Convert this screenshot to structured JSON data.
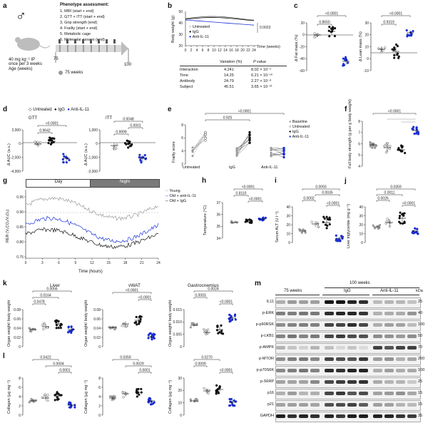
{
  "panel_labels": [
    "a",
    "b",
    "c",
    "d",
    "e",
    "f",
    "g",
    "h",
    "i",
    "j",
    "k",
    "l",
    "m"
  ],
  "a": {
    "header": "Phenotype assessment:",
    "items": [
      "1. MRI (start + end)",
      "2. GTT + ITT (start + end)",
      "3. Grip strength (end)",
      "4. Frailty (start + end)",
      "5. Metabolic cage",
      "6. Molecular assays (end)"
    ],
    "dose": "40 mg kg⁻¹ IP",
    "freq": "once per 3 weeks",
    "age_label": "Age (weeks)",
    "age_start": "75",
    "age_end": "100",
    "legend": "75 weeks",
    "sex_symbol": "♂"
  },
  "b": {
    "ylabel": "Body weight (g)",
    "xlabel": "Time (weeks)",
    "pvalue": "0.0023",
    "legend": [
      "Untreated",
      "IgG",
      "Anti-IL-11"
    ],
    "table_header": [
      "Variation (%)",
      "P value"
    ],
    "table_rows": [
      [
        "Interaction",
        "4.241",
        "8.02 × 10⁻⁵"
      ],
      [
        "Time",
        "14.25",
        "6.21 × 10⁻¹⁶"
      ],
      [
        "Antibody",
        "24.79",
        "2.27 × 10⁻⁸"
      ],
      [
        "Subject",
        "45.51",
        "3.65 × 10⁻²¹"
      ]
    ]
  },
  "c": {
    "ylabel1": "Δ Fat mass (%)",
    "ylabel2": "Δ Lean mass (%)",
    "p1": [
      "<0.0001",
      "0.8650"
    ],
    "p2": [
      "<0.0001",
      "0.9319"
    ]
  },
  "d": {
    "legend": [
      "Untreated",
      "IgG",
      "Anti-IL-11"
    ],
    "gtt_title": "GTT",
    "itt_title": "ITT",
    "ylabel": "Δ AUC (a.u.)",
    "gtt_p": [
      "<0.0001",
      "0.9642"
    ],
    "itt_p": [
      "0.0048",
      "0.0001",
      "0.9999"
    ]
  },
  "e": {
    "ylabel": "Frailty score",
    "groups": [
      "Untreated",
      "IgG",
      "Anti-IL-11"
    ],
    "legend": [
      "Baseline",
      "Untreated",
      "IgG",
      "Anti-IL-11"
    ],
    "p": [
      "<0.0001",
      "0.925"
    ]
  },
  "f": {
    "ylabel": "Full body strength (g per g body weight)",
    "p": [
      "<0.0001"
    ]
  },
  "g": {
    "day": "Day",
    "night": "Night",
    "ylabel": "RER (V₁CO₂/V₁O₂)",
    "xlabel": "Time (hours)",
    "legend": [
      "Young",
      "Old + anti-IL-11",
      "Old + IgG"
    ],
    "xticks": [
      "0",
      "3",
      "6",
      "9",
      "12",
      "15",
      "18",
      "21",
      "24"
    ],
    "yticks": [
      "0.95",
      "0.90",
      "0.85",
      "0.80",
      "0.75"
    ]
  },
  "h": {
    "ylabel": "Temperature (°C)",
    "p": [
      "<0.0001",
      "0.8110",
      "<0.0001"
    ],
    "yticks": [
      "37",
      "36",
      "35",
      "34"
    ]
  },
  "i": {
    "ylabel": "Serum ALT (U l⁻¹)",
    "p": [
      "0.0093",
      "0.0035",
      "0.0002",
      "<0.0001"
    ]
  },
  "j": {
    "ylabel": "Liver triglyceride (mg g⁻¹)",
    "p": [
      "0.0359",
      "0.0011",
      "0.0026",
      "<0.0001"
    ]
  },
  "k": {
    "titles": [
      "Liver",
      "vWAT",
      "Gastrocnemius"
    ],
    "ylabel": "Organ weight/ body weight",
    "p_liver": [
      "0.0056",
      "0.0164",
      "0.0478"
    ],
    "p_vwat": [
      "<0.0001",
      "<0.0001"
    ],
    "p_gastro": [
      "0.0024",
      "0.0003",
      "<0.0001"
    ]
  },
  "l": {
    "ylabel": "Collagen (µg mg⁻¹)",
    "p_liver": [
      "0.0422",
      "0.0004",
      "0.0001"
    ],
    "p_vwat": [
      "0.0359",
      "0.0029",
      "0.0001"
    ],
    "p_gastro": [
      "0.0270",
      "0.0009",
      "<0.0001"
    ]
  },
  "m": {
    "header_top": "100 weeks",
    "groups": [
      "75 weeks",
      "IgG",
      "Anti-IL-11"
    ],
    "kda_label": "kDa",
    "rows": [
      {
        "label": "IL11",
        "kda": "25"
      },
      {
        "label": "p-ERK",
        "kda": "40"
      },
      {
        "label": "p-p90RSK",
        "kda": "100"
      },
      {
        "label": "p-LKB1",
        "kda": "50"
      },
      {
        "label": "p-AMPK",
        "kda": "70"
      },
      {
        "label": "p-MTOR",
        "kda": "260"
      },
      {
        "label": "p-p70S6K",
        "kda": "100"
      },
      {
        "label": "p-S6RP",
        "kda": "25"
      },
      {
        "label": "p16",
        "kda": "15"
      },
      {
        "label": "p21",
        "kda": "15"
      },
      {
        "label": "GAPDH",
        "kda": "35"
      }
    ]
  },
  "colors": {
    "igg": "#111111",
    "anti": "#1a2fd6",
    "untreated": "#888888",
    "young": "#9a9a9a",
    "night": "#7a7a7a"
  }
}
